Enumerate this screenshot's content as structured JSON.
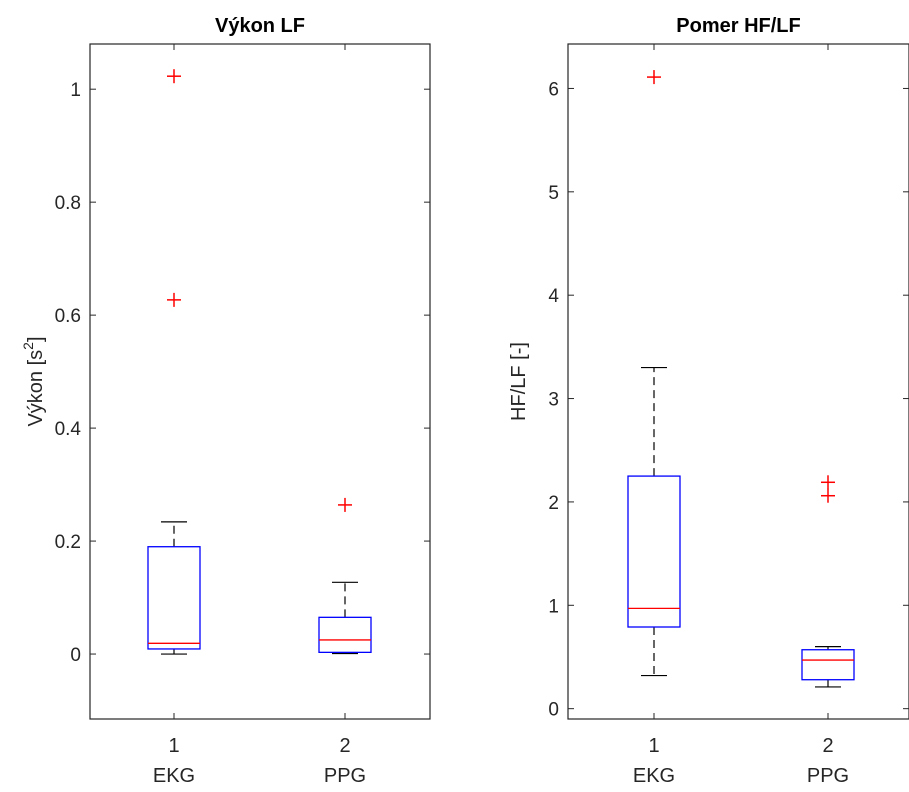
{
  "chart_data": [
    {
      "type": "box",
      "title": "Výkon LF",
      "ylabel": "Výkon [s",
      "ylabel_sup": "2",
      "ylabel_end": "]",
      "ylim": [
        -0.115,
        1.08
      ],
      "yticks": [
        0,
        0.2,
        0.4,
        0.6,
        0.8,
        1
      ],
      "ytick_labels": [
        "0",
        "0.2",
        "0.4",
        "0.6",
        "0.8",
        "1"
      ],
      "categories": [
        "1",
        "2"
      ],
      "category_names": [
        "EKG",
        "PPG"
      ],
      "boxes": [
        {
          "whisker_low": 0.0,
          "q1": 0.009,
          "median": 0.019,
          "q3": 0.19,
          "whisker_high": 0.234,
          "outliers": [
            1.023,
            0.627
          ]
        },
        {
          "whisker_low": 0.001,
          "q1": 0.003,
          "median": 0.025,
          "q3": 0.065,
          "whisker_high": 0.127,
          "outliers": [
            0.264
          ]
        }
      ]
    },
    {
      "type": "box",
      "title": "Pomer HF/LF",
      "ylabel": "HF/LF [-]",
      "ylabel_sup": "",
      "ylabel_end": "",
      "ylim": [
        -0.1,
        6.43
      ],
      "yticks": [
        0,
        1,
        2,
        3,
        4,
        5,
        6
      ],
      "ytick_labels": [
        "0",
        "1",
        "2",
        "3",
        "4",
        "5",
        "6"
      ],
      "categories": [
        "1",
        "2"
      ],
      "category_names": [
        "EKG",
        "PPG"
      ],
      "boxes": [
        {
          "whisker_low": 0.32,
          "q1": 0.79,
          "median": 0.97,
          "q3": 2.25,
          "whisker_high": 3.3,
          "outliers": [
            6.11
          ]
        },
        {
          "whisker_low": 0.21,
          "q1": 0.28,
          "median": 0.47,
          "q3": 0.57,
          "whisker_high": 0.6,
          "outliers": [
            2.19,
            2.06
          ]
        }
      ]
    }
  ],
  "colors": {
    "box": "#0000ff",
    "median": "#ff0000",
    "outlier": "#ff0000",
    "whisker": "#000000"
  }
}
